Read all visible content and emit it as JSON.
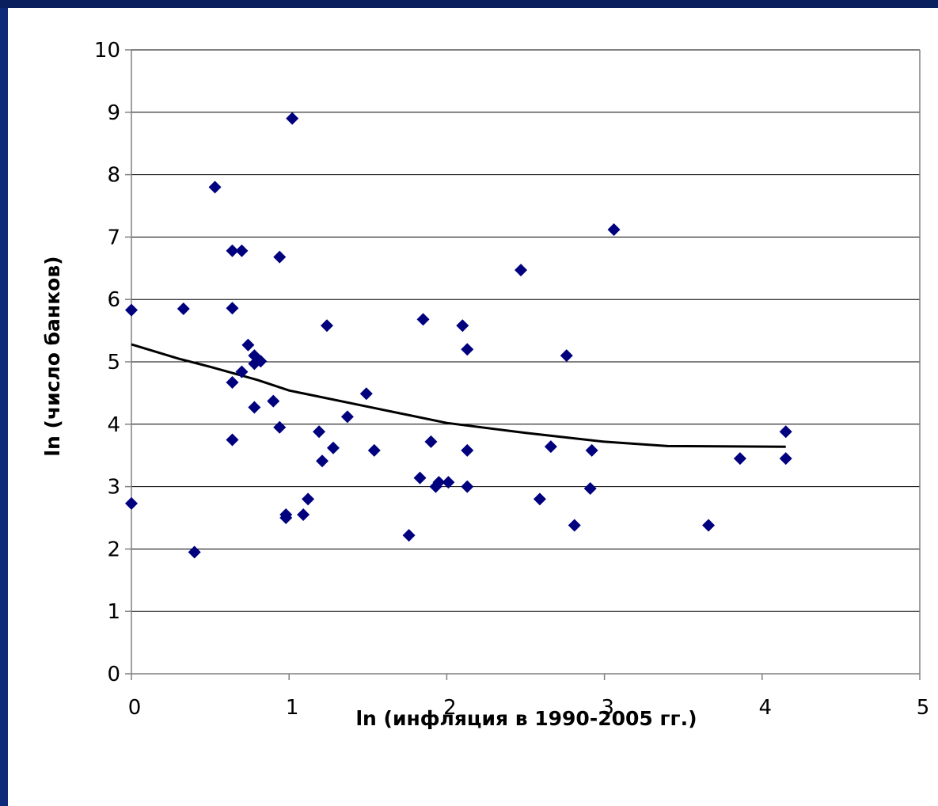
{
  "chart_data": {
    "type": "scatter",
    "title": "",
    "xlabel": "ln (инфляция в 1990-2005 гг.)",
    "ylabel": "ln (число банков)",
    "xlim": [
      0,
      5
    ],
    "ylim": [
      0,
      10
    ],
    "x_ticks": [
      "0",
      "1",
      "2",
      "3",
      "4",
      "5"
    ],
    "y_ticks": [
      "0",
      "1",
      "2",
      "3",
      "4",
      "5",
      "6",
      "7",
      "8",
      "9",
      "10"
    ],
    "grid": "horizontal",
    "colors": {
      "points": "#00007f",
      "trend": "#000000",
      "grid": "#000000",
      "background": "#0d2a7a"
    },
    "series": [
      {
        "marker": "diamond",
        "points": [
          [
            0.0,
            5.83
          ],
          [
            0.0,
            2.73
          ],
          [
            0.33,
            5.85
          ],
          [
            0.4,
            1.95
          ],
          [
            0.53,
            7.8
          ],
          [
            0.64,
            6.78
          ],
          [
            0.7,
            6.78
          ],
          [
            0.64,
            5.86
          ],
          [
            0.64,
            4.67
          ],
          [
            0.64,
            3.75
          ],
          [
            0.7,
            4.84
          ],
          [
            0.74,
            5.27
          ],
          [
            0.78,
            5.1
          ],
          [
            0.78,
            4.97
          ],
          [
            0.82,
            5.01
          ],
          [
            0.78,
            4.27
          ],
          [
            0.9,
            4.37
          ],
          [
            0.94,
            6.68
          ],
          [
            0.94,
            3.95
          ],
          [
            0.98,
            2.55
          ],
          [
            0.98,
            2.5
          ],
          [
            1.02,
            8.9
          ],
          [
            1.09,
            2.55
          ],
          [
            1.12,
            2.8
          ],
          [
            1.19,
            3.88
          ],
          [
            1.21,
            3.41
          ],
          [
            1.24,
            5.58
          ],
          [
            1.28,
            3.62
          ],
          [
            1.37,
            4.12
          ],
          [
            1.49,
            4.49
          ],
          [
            1.54,
            3.58
          ],
          [
            1.76,
            2.22
          ],
          [
            1.83,
            3.14
          ],
          [
            1.85,
            5.68
          ],
          [
            1.9,
            3.72
          ],
          [
            1.93,
            3.0
          ],
          [
            1.95,
            3.07
          ],
          [
            2.01,
            3.07
          ],
          [
            2.1,
            5.58
          ],
          [
            2.13,
            5.2
          ],
          [
            2.13,
            3.58
          ],
          [
            2.13,
            3.0
          ],
          [
            2.47,
            6.47
          ],
          [
            2.59,
            2.8
          ],
          [
            2.66,
            3.64
          ],
          [
            2.76,
            5.1
          ],
          [
            2.81,
            2.38
          ],
          [
            2.91,
            2.97
          ],
          [
            2.92,
            3.58
          ],
          [
            3.06,
            7.12
          ],
          [
            3.66,
            2.38
          ],
          [
            3.86,
            3.45
          ],
          [
            4.15,
            3.88
          ],
          [
            4.15,
            3.45
          ]
        ]
      }
    ],
    "trendline": {
      "type": "polynomial",
      "points": [
        [
          0.0,
          5.28
        ],
        [
          0.3,
          5.05
        ],
        [
          0.5,
          4.92
        ],
        [
          0.8,
          4.71
        ],
        [
          1.0,
          4.54
        ],
        [
          1.5,
          4.28
        ],
        [
          2.0,
          4.02
        ],
        [
          2.5,
          3.86
        ],
        [
          3.0,
          3.72
        ],
        [
          3.4,
          3.65
        ],
        [
          4.15,
          3.64
        ]
      ]
    }
  }
}
